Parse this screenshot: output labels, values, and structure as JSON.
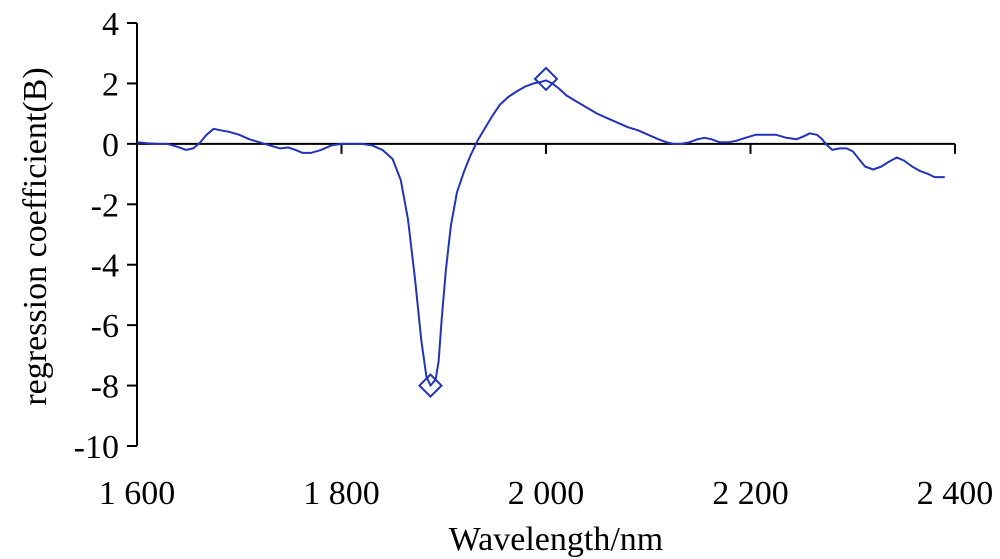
{
  "chart_data": {
    "type": "line",
    "title": "",
    "xlabel": "Wavelength/nm",
    "ylabel": "regression coefficient(B)",
    "xlim": [
      1600,
      2400
    ],
    "ylim": [
      -10,
      4
    ],
    "grid": false,
    "legend": "none",
    "x_ticks": [
      1600,
      1800,
      2000,
      2200,
      2400
    ],
    "x_tick_labels": [
      "1 600",
      "1 800",
      "2 000",
      "2 200",
      "2 400"
    ],
    "y_ticks": [
      4,
      2,
      0,
      -2,
      -4,
      -6,
      -8,
      -10
    ],
    "y_tick_labels": [
      "4",
      "2",
      "0",
      "-2",
      "-4",
      "-6",
      "-8",
      "-10"
    ],
    "line_color": "#2233bb",
    "series": [
      {
        "points": [
          [
            1600,
            0.05
          ],
          [
            1610,
            0.02
          ],
          [
            1620,
            0.0
          ],
          [
            1630,
            0.0
          ],
          [
            1640,
            -0.1
          ],
          [
            1648,
            -0.2
          ],
          [
            1655,
            -0.15
          ],
          [
            1662,
            0.05
          ],
          [
            1668,
            0.3
          ],
          [
            1675,
            0.5
          ],
          [
            1682,
            0.45
          ],
          [
            1690,
            0.4
          ],
          [
            1700,
            0.3
          ],
          [
            1710,
            0.15
          ],
          [
            1720,
            0.05
          ],
          [
            1730,
            -0.05
          ],
          [
            1740,
            -0.15
          ],
          [
            1748,
            -0.12
          ],
          [
            1755,
            -0.2
          ],
          [
            1762,
            -0.3
          ],
          [
            1770,
            -0.3
          ],
          [
            1780,
            -0.2
          ],
          [
            1790,
            -0.05
          ],
          [
            1800,
            0.0
          ],
          [
            1810,
            0.0
          ],
          [
            1820,
            0.0
          ],
          [
            1830,
            -0.05
          ],
          [
            1840,
            -0.2
          ],
          [
            1850,
            -0.5
          ],
          [
            1858,
            -1.2
          ],
          [
            1865,
            -2.5
          ],
          [
            1872,
            -4.5
          ],
          [
            1878,
            -6.5
          ],
          [
            1883,
            -7.7
          ],
          [
            1887,
            -8.0
          ],
          [
            1892,
            -7.8
          ],
          [
            1895,
            -7.2
          ],
          [
            1898,
            -5.8
          ],
          [
            1902,
            -4.2
          ],
          [
            1907,
            -2.7
          ],
          [
            1913,
            -1.6
          ],
          [
            1920,
            -0.9
          ],
          [
            1926,
            -0.4
          ],
          [
            1933,
            0.1
          ],
          [
            1940,
            0.5
          ],
          [
            1947,
            0.9
          ],
          [
            1955,
            1.3
          ],
          [
            1963,
            1.55
          ],
          [
            1972,
            1.75
          ],
          [
            1980,
            1.9
          ],
          [
            1988,
            2.0
          ],
          [
            1995,
            2.05
          ],
          [
            2000,
            2.1
          ],
          [
            2006,
            2.0
          ],
          [
            2012,
            1.85
          ],
          [
            2020,
            1.6
          ],
          [
            2030,
            1.4
          ],
          [
            2040,
            1.2
          ],
          [
            2050,
            1.0
          ],
          [
            2060,
            0.85
          ],
          [
            2070,
            0.7
          ],
          [
            2080,
            0.55
          ],
          [
            2090,
            0.45
          ],
          [
            2100,
            0.3
          ],
          [
            2110,
            0.15
          ],
          [
            2118,
            0.05
          ],
          [
            2125,
            0.0
          ],
          [
            2132,
            0.0
          ],
          [
            2140,
            0.05
          ],
          [
            2148,
            0.15
          ],
          [
            2155,
            0.2
          ],
          [
            2162,
            0.15
          ],
          [
            2170,
            0.05
          ],
          [
            2178,
            0.05
          ],
          [
            2186,
            0.1
          ],
          [
            2195,
            0.2
          ],
          [
            2205,
            0.3
          ],
          [
            2215,
            0.3
          ],
          [
            2225,
            0.3
          ],
          [
            2235,
            0.2
          ],
          [
            2245,
            0.15
          ],
          [
            2252,
            0.25
          ],
          [
            2258,
            0.35
          ],
          [
            2265,
            0.3
          ],
          [
            2270,
            0.15
          ],
          [
            2275,
            -0.05
          ],
          [
            2280,
            -0.2
          ],
          [
            2287,
            -0.15
          ],
          [
            2294,
            -0.15
          ],
          [
            2300,
            -0.25
          ],
          [
            2306,
            -0.5
          ],
          [
            2312,
            -0.75
          ],
          [
            2320,
            -0.85
          ],
          [
            2328,
            -0.75
          ],
          [
            2335,
            -0.6
          ],
          [
            2343,
            -0.45
          ],
          [
            2350,
            -0.55
          ],
          [
            2358,
            -0.75
          ],
          [
            2366,
            -0.9
          ],
          [
            2374,
            -1.0
          ],
          [
            2380,
            -1.1
          ],
          [
            2390,
            -1.1
          ]
        ]
      }
    ],
    "markers": [
      {
        "x": 1887,
        "y": -8.0,
        "shape": "diamond"
      },
      {
        "x": 2000,
        "y": 2.15,
        "shape": "diamond"
      }
    ]
  }
}
